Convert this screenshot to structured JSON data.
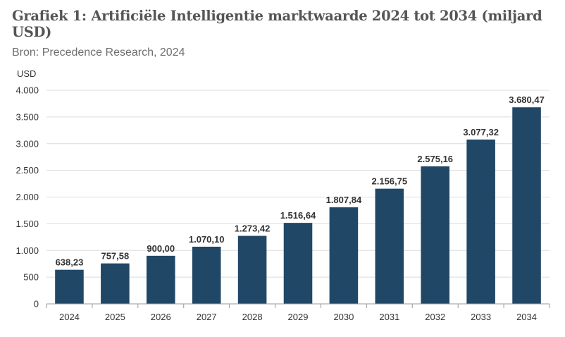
{
  "header": {
    "title": "Grafiek 1: Artificiële Intelligentie marktwaarde 2024 tot 2034 (miljard USD)",
    "source": "Bron: Precedence Research, 2024"
  },
  "colors": {
    "bar": "#214766",
    "grid": "#dcdcdc",
    "axis": "#9a9a9a"
  },
  "chart_data": {
    "type": "bar",
    "title": "Grafiek 1: Artificiële Intelligentie marktwaarde 2024 tot 2034 (miljard USD)",
    "subtitle": "Bron: Precedence Research, 2024",
    "xlabel": "",
    "ylabel": "USD",
    "ylim": [
      0,
      4000
    ],
    "yticks": [
      0,
      500,
      1000,
      1500,
      2000,
      2500,
      3000,
      3500,
      4000
    ],
    "ytick_labels": [
      "0",
      "500",
      "1.000",
      "1.500",
      "2.000",
      "2.500",
      "3.000",
      "3.500",
      "4.000"
    ],
    "grid": true,
    "legend": "none",
    "categories": [
      "2024",
      "2025",
      "2026",
      "2027",
      "2028",
      "2029",
      "2030",
      "2031",
      "2032",
      "2033",
      "2034"
    ],
    "values": [
      638.23,
      757.58,
      900.0,
      1070.1,
      1273.42,
      1516.64,
      1807.84,
      2156.75,
      2575.16,
      3077.32,
      3680.47
    ],
    "value_labels": [
      "638,23",
      "757,58",
      "900,00",
      "1.070,10",
      "1.273,42",
      "1.516,64",
      "1.807,84",
      "2.156,75",
      "2.575,16",
      "3.077,32",
      "3.680,47"
    ]
  }
}
